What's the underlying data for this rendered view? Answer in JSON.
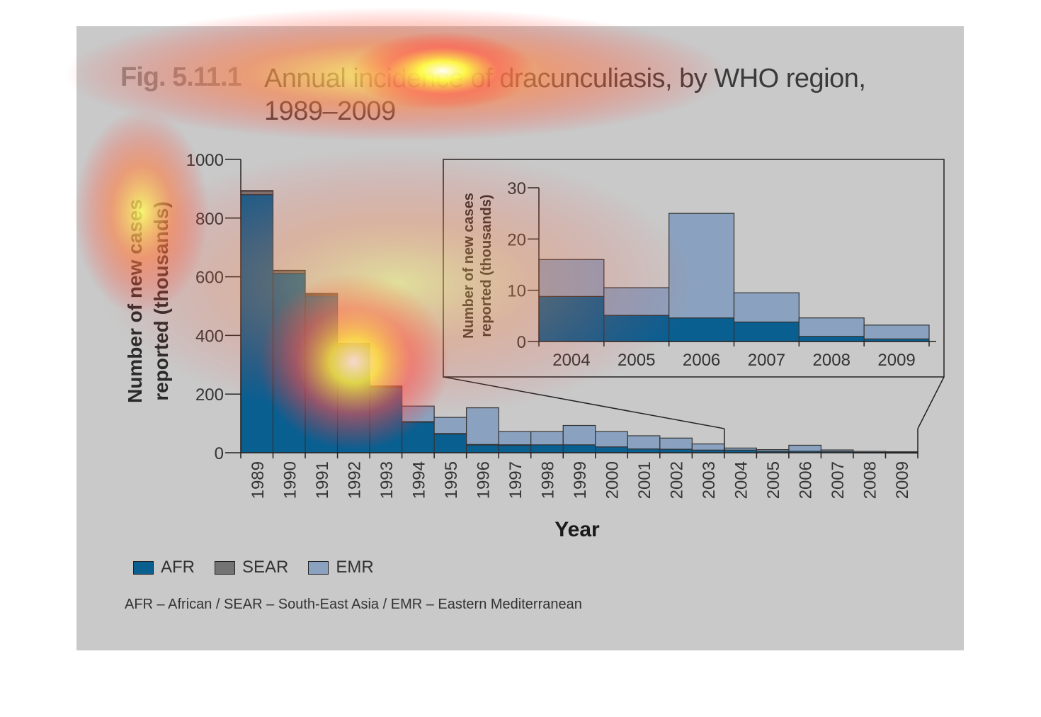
{
  "figure": {
    "label": "Fig. 5.11.1",
    "title": "Annual incidence of dracunculiasis, by WHO region, 1989–2009"
  },
  "legend": {
    "items": [
      {
        "label": "AFR",
        "color": "#0a5f91"
      },
      {
        "label": "SEAR",
        "color": "#737373"
      },
      {
        "label": "EMR",
        "color": "#8aa2bf"
      }
    ]
  },
  "footnote": "AFR – African / SEAR – South-East Asia / EMR – Eastern Mediterranean",
  "colors": {
    "AFR": "#0a5f91",
    "SEAR": "#737373",
    "EMR": "#8aa2bf",
    "panel": "#c9c9c9"
  },
  "chart_data": [
    {
      "type": "bar",
      "stacked": true,
      "xlabel": "Year",
      "ylabel": "Number of new cases reported (thousands)",
      "ylim": [
        0,
        1000
      ],
      "yticks": [
        0,
        200,
        400,
        600,
        800,
        1000
      ],
      "categories": [
        "1989",
        "1990",
        "1991",
        "1992",
        "1993",
        "1994",
        "1995",
        "1996",
        "1997",
        "1998",
        "1999",
        "2000",
        "2001",
        "2002",
        "2003",
        "2004",
        "2005",
        "2006",
        "2007",
        "2008",
        "2009"
      ],
      "series": [
        {
          "name": "AFR",
          "values": [
            880,
            612,
            535,
            365,
            222,
            105,
            65,
            28,
            27,
            27,
            27,
            20,
            13,
            12,
            9,
            9,
            5,
            5,
            4,
            1,
            0.5
          ]
        },
        {
          "name": "SEAR",
          "values": [
            12,
            8,
            6,
            5,
            3,
            1,
            0.5,
            0.2,
            0.1,
            0,
            0,
            0,
            0,
            0,
            0,
            0,
            0,
            0,
            0,
            0,
            0
          ]
        },
        {
          "name": "EMR",
          "values": [
            2,
            2,
            2,
            3,
            3,
            53,
            55,
            125,
            45,
            45,
            66,
            52,
            45,
            38,
            21,
            7,
            5.5,
            20.5,
            5.5,
            3.5,
            2.8
          ]
        }
      ]
    },
    {
      "type": "bar",
      "stacked": true,
      "inset": true,
      "ylabel": "Number of new cases reported (thousands)",
      "ylim": [
        0,
        30
      ],
      "yticks": [
        0,
        10,
        20,
        30
      ],
      "categories": [
        "2004",
        "2005",
        "2006",
        "2007",
        "2008",
        "2009"
      ],
      "series": [
        {
          "name": "AFR",
          "values": [
            8.8,
            5.1,
            4.6,
            3.8,
            1,
            0.5
          ]
        },
        {
          "name": "EMR",
          "values": [
            7.2,
            5.4,
            20.4,
            5.7,
            3.6,
            2.7
          ]
        }
      ]
    }
  ]
}
